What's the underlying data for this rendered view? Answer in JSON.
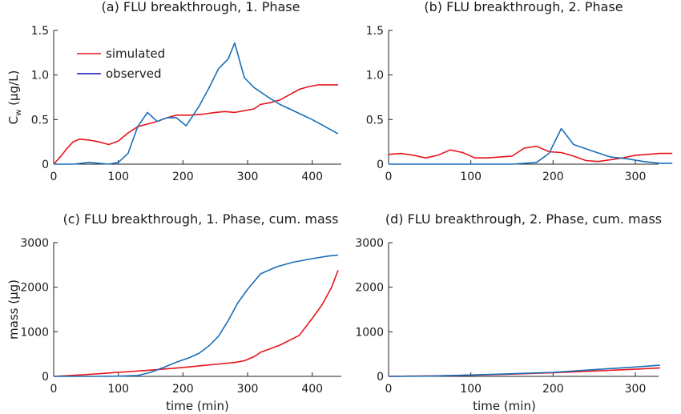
{
  "chart_data": [
    {
      "type": "line",
      "title": "(a) FLU breakthrough, 1. Phase",
      "xlabel": "",
      "ylabel": "C_w (µg/L)",
      "ylabel_main": "C",
      "ylabel_sub": "w",
      "ylabel_rest": " (µg/L)",
      "xlim": [
        0,
        450
      ],
      "ylim": [
        0,
        1.5
      ],
      "xticks": [
        0,
        100,
        200,
        300,
        400
      ],
      "yticks": [
        0,
        0.5,
        1.0,
        1.5
      ],
      "ytick_labels": [
        "0",
        "0.5",
        "1.0",
        "1.5"
      ],
      "legend": {
        "position": "top-left"
      },
      "series": [
        {
          "name": "simulated",
          "color": "#e8141c",
          "x": [
            0,
            10,
            20,
            30,
            40,
            55,
            70,
            85,
            100,
            115,
            130,
            145,
            160,
            175,
            190,
            210,
            230,
            250,
            265,
            280,
            295,
            310,
            320,
            335,
            350,
            365,
            380,
            395,
            410,
            425,
            440
          ],
          "y": [
            0,
            0.08,
            0.17,
            0.25,
            0.28,
            0.27,
            0.25,
            0.22,
            0.26,
            0.35,
            0.42,
            0.45,
            0.48,
            0.52,
            0.55,
            0.55,
            0.56,
            0.58,
            0.59,
            0.58,
            0.6,
            0.62,
            0.67,
            0.69,
            0.72,
            0.78,
            0.84,
            0.87,
            0.89,
            0.89,
            0.89
          ]
        },
        {
          "name": "observed",
          "color": "#1a6fb8",
          "x": [
            0,
            30,
            55,
            85,
            100,
            115,
            130,
            145,
            160,
            175,
            190,
            205,
            225,
            240,
            255,
            270,
            280,
            295,
            310,
            330,
            350,
            400,
            440
          ],
          "y": [
            0,
            0,
            0.02,
            0,
            0.02,
            0.12,
            0.42,
            0.58,
            0.48,
            0.52,
            0.52,
            0.43,
            0.65,
            0.85,
            1.07,
            1.18,
            1.36,
            0.97,
            0.86,
            0.76,
            0.67,
            0.5,
            0.34
          ]
        }
      ]
    },
    {
      "type": "line",
      "title": "(b) FLU breakthrough, 2. Phase",
      "xlabel": "",
      "ylabel": "",
      "xlim": [
        0,
        345
      ],
      "ylim": [
        0,
        1.5
      ],
      "xticks": [
        0,
        100,
        200,
        300
      ],
      "yticks": [
        0,
        0.5,
        1.0,
        1.5
      ],
      "ytick_labels": [
        "0",
        "0.5",
        "1.0",
        "1.5"
      ],
      "series": [
        {
          "name": "simulated",
          "color": "#e8141c",
          "x": [
            0,
            15,
            30,
            45,
            60,
            75,
            90,
            105,
            120,
            135,
            150,
            165,
            180,
            195,
            210,
            225,
            240,
            255,
            270,
            285,
            300,
            315,
            330,
            345
          ],
          "y": [
            0.11,
            0.12,
            0.1,
            0.07,
            0.1,
            0.16,
            0.13,
            0.07,
            0.07,
            0.08,
            0.09,
            0.18,
            0.2,
            0.14,
            0.13,
            0.09,
            0.04,
            0.03,
            0.05,
            0.07,
            0.1,
            0.11,
            0.12,
            0.12
          ]
        },
        {
          "name": "observed",
          "color": "#1a6fb8",
          "x": [
            0,
            100,
            150,
            180,
            195,
            210,
            225,
            250,
            270,
            290,
            310,
            320,
            330,
            345
          ],
          "y": [
            0,
            0,
            0,
            0.02,
            0.12,
            0.4,
            0.22,
            0.14,
            0.08,
            0.06,
            0.03,
            0.02,
            0.01,
            0.01
          ]
        }
      ]
    },
    {
      "type": "line",
      "title": "(c) FLU breakthrough, 1. Phase, cum. mass",
      "xlabel": "time (min)",
      "ylabel": "mass (µg)",
      "xlim": [
        0,
        450
      ],
      "ylim": [
        0,
        3000
      ],
      "xticks": [
        0,
        100,
        200,
        300,
        400
      ],
      "yticks": [
        0,
        1000,
        2000,
        3000
      ],
      "ytick_labels": [
        "0",
        "1000",
        "2000",
        "3000"
      ],
      "series": [
        {
          "name": "simulated",
          "color": "#e8141c",
          "x": [
            0,
            50,
            100,
            150,
            200,
            250,
            280,
            295,
            310,
            320,
            335,
            350,
            380,
            400,
            415,
            430,
            440
          ],
          "y": [
            0,
            40,
            90,
            140,
            200,
            270,
            310,
            350,
            440,
            540,
            620,
            700,
            920,
            1300,
            1600,
            2000,
            2380
          ]
        },
        {
          "name": "observed",
          "color": "#1a6fb8",
          "x": [
            0,
            60,
            100,
            130,
            150,
            170,
            190,
            210,
            225,
            240,
            255,
            270,
            285,
            300,
            320,
            345,
            370,
            400,
            425,
            440
          ],
          "y": [
            0,
            0,
            5,
            20,
            90,
            200,
            320,
            420,
            520,
            680,
            900,
            1250,
            1650,
            1950,
            2300,
            2460,
            2560,
            2640,
            2700,
            2720
          ]
        }
      ]
    },
    {
      "type": "line",
      "title": "(d) FLU breakthrough, 2. Phase, cum. mass",
      "xlabel": "time (min)",
      "ylabel": "",
      "xlim": [
        0,
        345
      ],
      "ylim": [
        0,
        3000
      ],
      "xticks": [
        0,
        100,
        200,
        300
      ],
      "yticks": [
        0,
        1000,
        2000,
        3000
      ],
      "ytick_labels": [
        "0",
        "1000",
        "2000",
        "3000"
      ],
      "series": [
        {
          "name": "simulated",
          "color": "#e8141c",
          "x": [
            0,
            50,
            100,
            150,
            200,
            250,
            300,
            330
          ],
          "y": [
            0,
            10,
            25,
            50,
            80,
            120,
            160,
            190
          ]
        },
        {
          "name": "observed",
          "color": "#1a6fb8",
          "x": [
            0,
            50,
            100,
            150,
            200,
            250,
            300,
            330
          ],
          "y": [
            0,
            5,
            30,
            60,
            90,
            150,
            210,
            250
          ]
        }
      ]
    }
  ]
}
